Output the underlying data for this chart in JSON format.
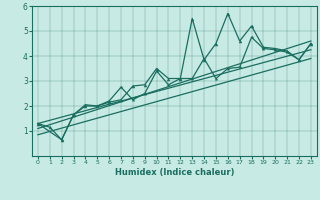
{
  "xlabel": "Humidex (Indice chaleur)",
  "xlim": [
    -0.5,
    23.5
  ],
  "ylim": [
    0,
    6
  ],
  "xticks": [
    0,
    1,
    2,
    3,
    4,
    5,
    6,
    7,
    8,
    9,
    10,
    11,
    12,
    13,
    14,
    15,
    16,
    17,
    18,
    19,
    20,
    21,
    22,
    23
  ],
  "yticks": [
    1,
    2,
    3,
    4,
    5,
    6
  ],
  "bg_color": "#c8eae4",
  "line_color": "#1a6e60",
  "series1_x": [
    0,
    1,
    2,
    3,
    4,
    5,
    6,
    7,
    8,
    9,
    10,
    11,
    12,
    13,
    14,
    15,
    16,
    17,
    18,
    19,
    20,
    21,
    22,
    23
  ],
  "series1_y": [
    1.3,
    1.15,
    0.65,
    1.65,
    2.0,
    2.0,
    2.15,
    2.25,
    2.8,
    2.85,
    3.5,
    3.1,
    3.1,
    5.5,
    3.85,
    4.5,
    5.7,
    4.6,
    5.2,
    4.35,
    4.3,
    4.2,
    3.85,
    4.5
  ],
  "series2_x": [
    0,
    2,
    3,
    4,
    5,
    6,
    7,
    8,
    9,
    10,
    11,
    12,
    13,
    14,
    15,
    16,
    17,
    18,
    19,
    20,
    21,
    22,
    23
  ],
  "series2_y": [
    1.3,
    0.65,
    1.65,
    2.05,
    2.0,
    2.2,
    2.75,
    2.25,
    2.5,
    3.4,
    2.85,
    3.1,
    3.1,
    3.9,
    3.1,
    3.5,
    3.55,
    4.75,
    4.3,
    4.25,
    4.15,
    3.85,
    4.5
  ],
  "trend1_x": [
    0,
    23
  ],
  "trend1_y": [
    1.1,
    4.6
  ],
  "trend2_x": [
    0,
    23
  ],
  "trend2_y": [
    1.3,
    4.25
  ],
  "trend3_x": [
    0,
    23
  ],
  "trend3_y": [
    0.85,
    3.9
  ]
}
